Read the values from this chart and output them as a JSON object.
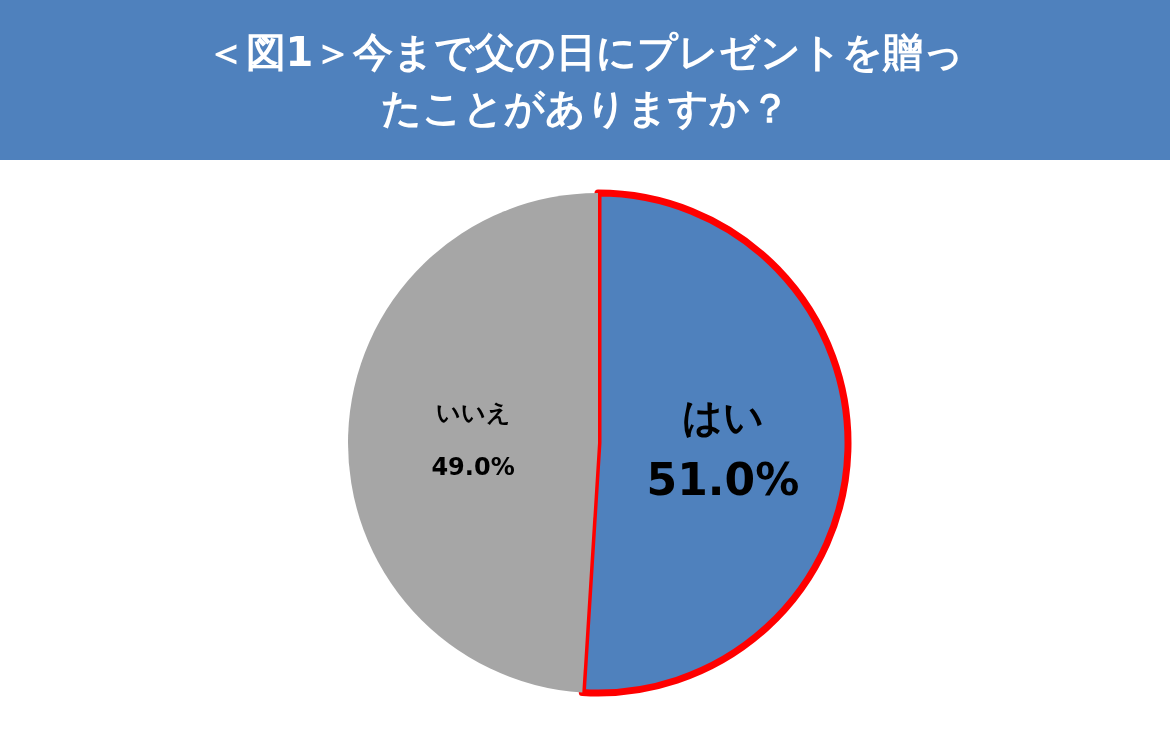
{
  "chart_data": {
    "type": "pie",
    "title": "＜図1＞今まで父の日にプレゼントを贈ったことがありますか？",
    "categories": [
      "はい",
      "いいえ"
    ],
    "values": [
      51.0,
      49.0
    ],
    "colors": [
      "#4f81bd",
      "#a6a6a6"
    ],
    "value_labels": [
      "51.0%",
      "49.0%"
    ],
    "legend": false
  }
}
